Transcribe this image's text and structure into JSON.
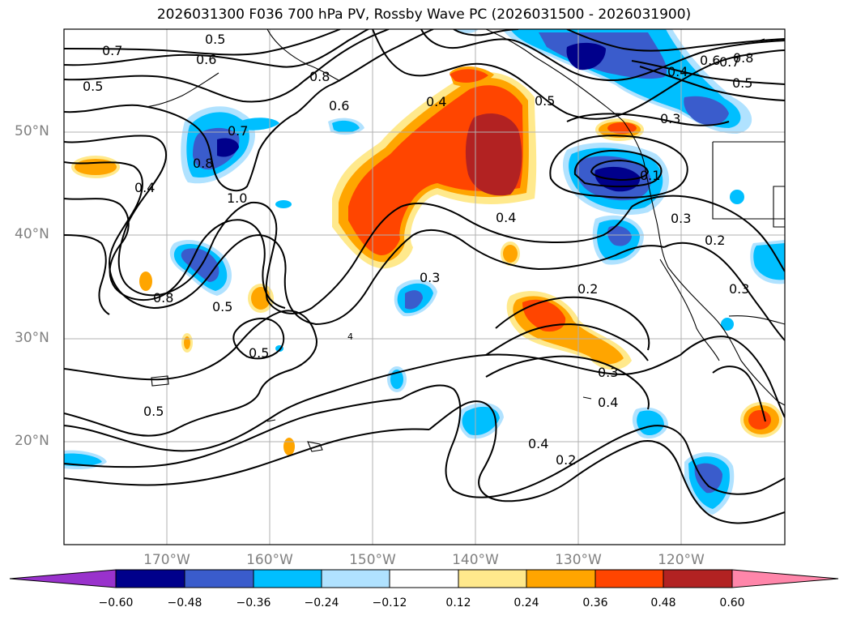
{
  "title": "2026031300 F036 700 hPa PV, Rossby Wave PC (2026031500 - 2026031900)",
  "lat_labels": [
    "50°N",
    "40°N",
    "30°N",
    "20°N"
  ],
  "lon_labels": [
    "170°W",
    "160°W",
    "150°W",
    "140°W",
    "130°W",
    "120°W"
  ],
  "colorbar": {
    "ticks": [
      "−0.60",
      "−0.48",
      "−0.36",
      "−0.24",
      "−0.12",
      "0.12",
      "0.24",
      "0.36",
      "0.48",
      "0.60"
    ],
    "colors": [
      "#9932cc",
      "#00008b",
      "#3a5ccc",
      "#00bfff",
      "#b0e2ff",
      "#ffffff",
      "#ffe98c",
      "#ffa500",
      "#ff4500",
      "#b22222",
      "#ff86aa"
    ]
  },
  "contour_labels": [
    "0.7",
    "0.5",
    "0.6",
    "0.8",
    "0.6",
    "0.4",
    "0.5",
    "0.7",
    "0.8",
    "1.0",
    "0.4",
    "0.8",
    "0.5",
    "0.5",
    "0.5",
    "0.3",
    "0.4",
    "0.2",
    "0.3",
    "0.4",
    "0.4",
    "0.2",
    "0.6",
    "0.7",
    "0.8",
    "0.4",
    "0.5",
    "0.3",
    "0.3",
    "0.2",
    "0.3",
    "4",
    "0.1",
    "0.5"
  ]
}
